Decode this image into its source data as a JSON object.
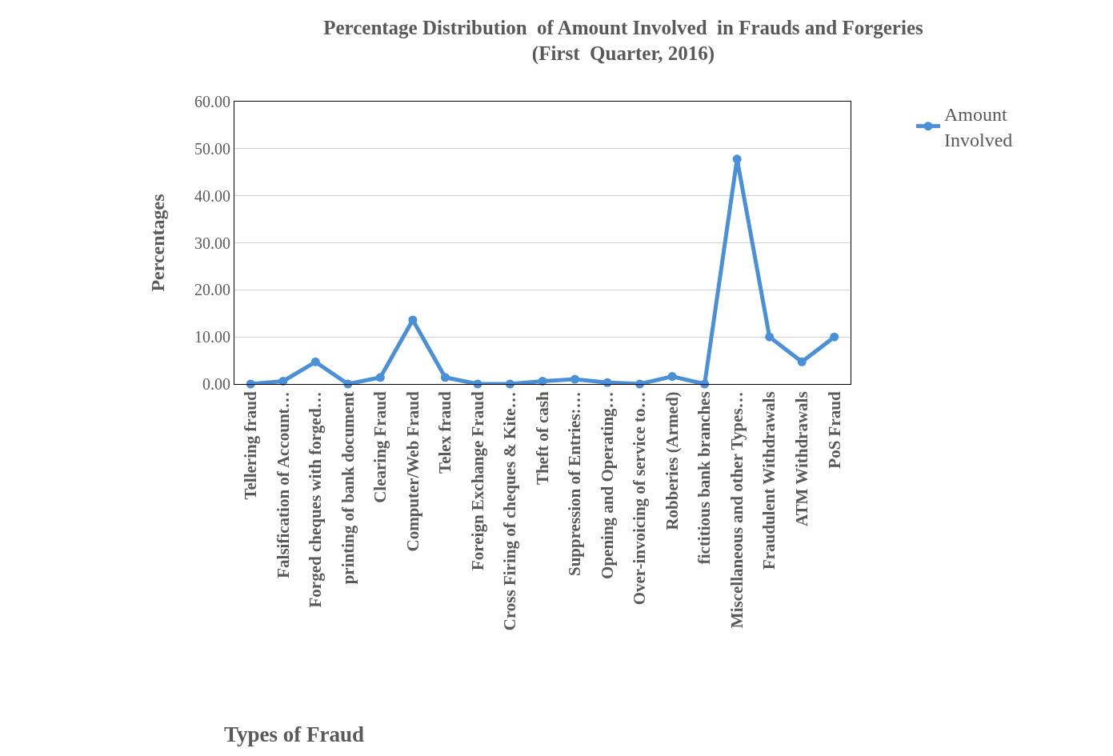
{
  "chart_data": {
    "type": "line",
    "title": "Percentage Distribution  of Amount Involved  in Frauds and Forgeries",
    "subtitle": "(First  Quarter, 2016)",
    "annotations": [
      "Types of Fraud"
    ],
    "ylabel": "Percentages",
    "categories": [
      "Tellering fraud",
      "Falsification of Account…",
      "Forged cheques with forged…",
      "printing of bank document",
      "Clearing Fraud",
      "Computer/Web Fraud",
      "Telex fraud",
      "Foreign Exchange Fraud",
      "Cross Firing of cheques & Kite…",
      "Theft of cash",
      "Suppression of Entries:…",
      "Opening and Operating…",
      "Over-invoicing of service to…",
      "Robberies (Armed)",
      "fictitious bank branches",
      "Miscellaneous and other Types…",
      "Fraudulent Withdrawals",
      "ATM Withdrawals",
      "PoS Fraud"
    ],
    "series": [
      {
        "name": "Amount Involved",
        "color": "#4a90d9",
        "values": [
          0.0,
          0.6,
          4.7,
          0.0,
          1.4,
          13.6,
          1.4,
          0.0,
          0.0,
          0.6,
          1.0,
          0.3,
          0.0,
          1.6,
          0.0,
          47.8,
          10.0,
          4.7,
          10.0
        ]
      }
    ],
    "ylim": [
      0,
      60
    ],
    "yticks": [
      {
        "value": 0,
        "label": "0.00"
      },
      {
        "value": 10,
        "label": "10.00"
      },
      {
        "value": 20,
        "label": "20.00"
      },
      {
        "value": 30,
        "label": "30.00"
      },
      {
        "value": 40,
        "label": "40.00"
      },
      {
        "value": 50,
        "label": "50.00"
      },
      {
        "value": 60,
        "label": "60.00"
      }
    ],
    "grid": "y",
    "legend": "top right",
    "marker": "circle",
    "line_style": "solid"
  }
}
